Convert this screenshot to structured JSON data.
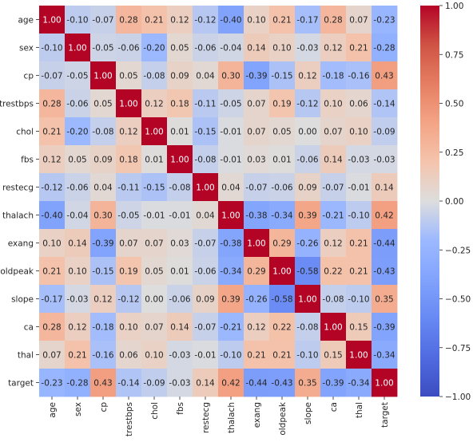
{
  "chart_data": {
    "type": "heatmap",
    "title": "",
    "xlabel": "",
    "ylabel": "",
    "categories": [
      "age",
      "sex",
      "cp",
      "trestbps",
      "chol",
      "fbs",
      "restecg",
      "thalach",
      "exang",
      "oldpeak",
      "slope",
      "ca",
      "thal",
      "target"
    ],
    "values": [
      [
        1.0,
        -0.1,
        -0.07,
        0.28,
        0.21,
        0.12,
        -0.12,
        -0.4,
        0.1,
        0.21,
        -0.17,
        0.28,
        0.07,
        -0.23
      ],
      [
        -0.1,
        1.0,
        -0.05,
        -0.06,
        -0.2,
        0.05,
        -0.06,
        -0.04,
        0.14,
        0.1,
        -0.03,
        0.12,
        0.21,
        -0.28
      ],
      [
        -0.07,
        -0.05,
        1.0,
        0.05,
        -0.08,
        0.09,
        0.04,
        0.3,
        -0.39,
        -0.15,
        0.12,
        -0.18,
        -0.16,
        0.43
      ],
      [
        0.28,
        -0.06,
        0.05,
        1.0,
        0.12,
        0.18,
        -0.11,
        -0.05,
        0.07,
        0.19,
        -0.12,
        0.1,
        0.06,
        -0.14
      ],
      [
        0.21,
        -0.2,
        -0.08,
        0.12,
        1.0,
        0.01,
        -0.15,
        -0.01,
        0.07,
        0.05,
        -0.0,
        0.07,
        0.1,
        -0.09
      ],
      [
        0.12,
        0.05,
        0.09,
        0.18,
        0.01,
        1.0,
        -0.08,
        -0.01,
        0.03,
        0.01,
        -0.06,
        0.14,
        -0.03,
        -0.03
      ],
      [
        -0.12,
        -0.06,
        0.04,
        -0.11,
        -0.15,
        -0.08,
        1.0,
        0.04,
        -0.07,
        -0.06,
        0.09,
        -0.07,
        -0.01,
        0.14
      ],
      [
        -0.4,
        -0.04,
        0.3,
        -0.05,
        -0.01,
        -0.01,
        0.04,
        1.0,
        -0.38,
        -0.34,
        0.39,
        -0.21,
        -0.1,
        0.42
      ],
      [
        0.1,
        0.14,
        -0.39,
        0.07,
        0.07,
        0.03,
        -0.07,
        -0.38,
        1.0,
        0.29,
        -0.26,
        0.12,
        0.21,
        -0.44
      ],
      [
        0.21,
        0.1,
        -0.15,
        0.19,
        0.05,
        0.01,
        -0.06,
        -0.34,
        0.29,
        1.0,
        -0.58,
        0.22,
        0.21,
        -0.43
      ],
      [
        -0.17,
        -0.03,
        0.12,
        -0.12,
        -0.0,
        -0.06,
        0.09,
        0.39,
        -0.26,
        -0.58,
        1.0,
        -0.08,
        -0.1,
        0.35
      ],
      [
        0.28,
        0.12,
        -0.18,
        0.1,
        0.07,
        0.14,
        -0.07,
        -0.21,
        0.12,
        0.22,
        -0.08,
        1.0,
        0.15,
        -0.39
      ],
      [
        0.07,
        0.21,
        -0.16,
        0.06,
        0.1,
        -0.03,
        -0.01,
        -0.1,
        0.21,
        0.21,
        -0.1,
        0.15,
        1.0,
        -0.34
      ],
      [
        -0.23,
        -0.28,
        0.43,
        -0.14,
        -0.09,
        -0.03,
        0.14,
        0.42,
        -0.44,
        -0.43,
        0.35,
        -0.39,
        -0.34,
        1.0
      ]
    ],
    "value_format": "0.00",
    "annotated": true,
    "colormap": "coolwarm",
    "vmin": -1.0,
    "vmax": 1.0,
    "colorbar_ticks": [
      1.0,
      0.75,
      0.5,
      0.25,
      0.0,
      -0.25,
      -0.5,
      -0.75,
      -1.0
    ],
    "colorbar_placement": "right",
    "grid": false
  }
}
